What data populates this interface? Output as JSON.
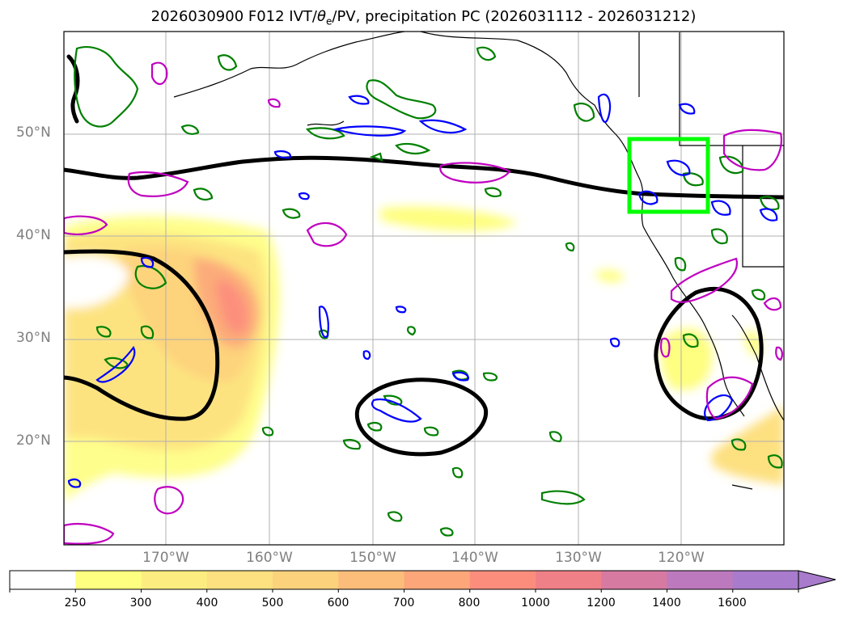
{
  "title_parts": {
    "before": "2026030900 F012 IVT/",
    "theta": "θ",
    "sub": "e",
    "after": "/PV, precipitation PC (2026031112 - 2026031212)"
  },
  "lat_labels": [
    "50°N",
    "40°N",
    "30°N",
    "20°N"
  ],
  "lon_labels": [
    "170°W",
    "160°W",
    "150°W",
    "140°W",
    "130°W",
    "120°W"
  ],
  "colorbar": {
    "ticks": [
      "250",
      "300",
      "400",
      "500",
      "600",
      "700",
      "800",
      "1000",
      "1200",
      "1400",
      "1600"
    ],
    "colors": [
      "#ffffff",
      "#fefe80",
      "#fded80",
      "#fde080",
      "#fdd27c",
      "#fdbd7a",
      "#fca67a",
      "#fc8d7c",
      "#f08088",
      "#d67aa2",
      "#bd79bd",
      "#a87bcc"
    ]
  },
  "legend_colors": {
    "theta_e_contour": "#000000",
    "precip_pc_green": "#008000",
    "precip_pc_blue": "#0000ff",
    "pv_magenta": "#c000c0",
    "target_box": "#00ff00"
  }
}
